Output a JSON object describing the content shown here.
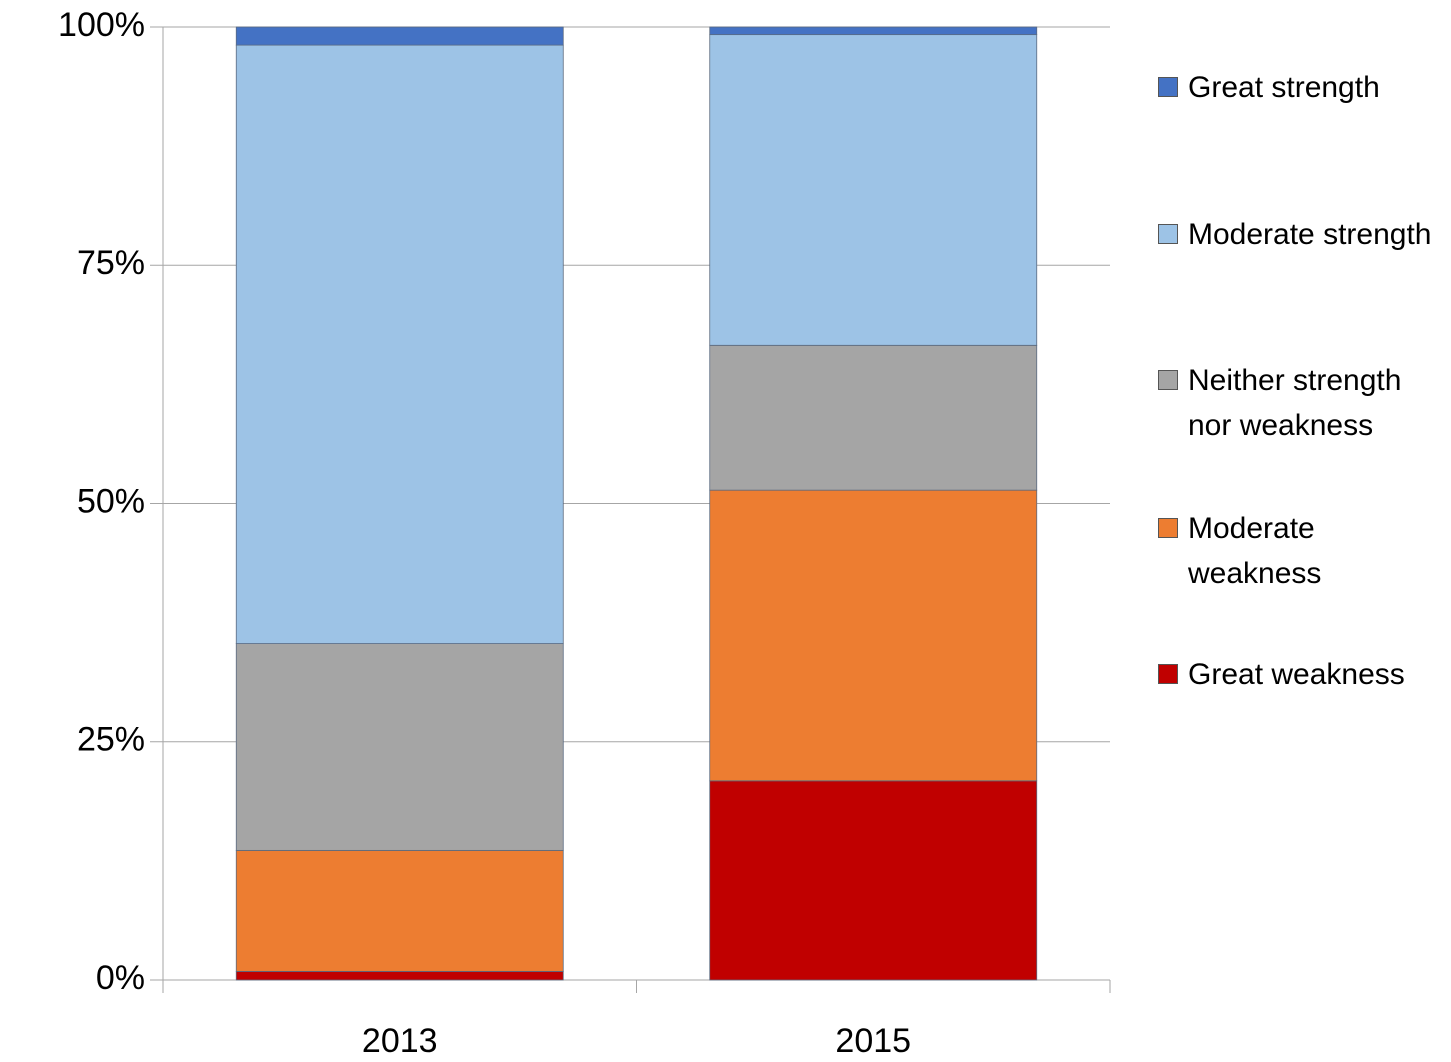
{
  "chart_data": {
    "type": "stacked_bar",
    "categories": [
      "2013",
      "2015"
    ],
    "series": [
      {
        "name": "Great weakness",
        "color": "#c00000",
        "values": [
          0.9,
          20.9
        ]
      },
      {
        "name": "Moderate weakness",
        "color": "#ed7d31",
        "values": [
          12.7,
          30.5
        ]
      },
      {
        "name": "Neither strength nor weakness",
        "color": "#a5a5a5",
        "values": [
          21.7,
          15.2
        ]
      },
      {
        "name": "Moderate strength",
        "color": "#9dc3e6",
        "values": [
          62.8,
          32.6
        ]
      },
      {
        "name": "Great strength",
        "color": "#4472c4",
        "values": [
          1.9,
          0.8
        ]
      }
    ],
    "ylim": [
      0,
      100
    ],
    "yticks": [
      {
        "value": 0,
        "label": "0%"
      },
      {
        "value": 25,
        "label": "25%"
      },
      {
        "value": 50,
        "label": "50%"
      },
      {
        "value": 75,
        "label": "75%"
      },
      {
        "value": 100,
        "label": "100%"
      }
    ],
    "grid": true,
    "legend": "right"
  }
}
